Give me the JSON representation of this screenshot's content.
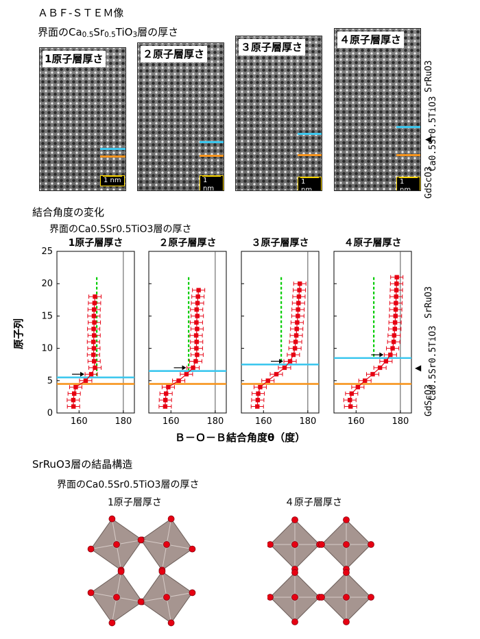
{
  "stem": {
    "title": "ＡＢＦ-ＳＴＥＭ像",
    "subtitle_pre": "界面のCa",
    "subtitle_sub1": "0.5",
    "subtitle_mid": "Sr",
    "subtitle_sub2": "0.5",
    "subtitle_ti": "TiO",
    "subtitle_sub3": "3",
    "subtitle_post": "層の厚さ",
    "panels": [
      "1原子層厚さ",
      "２原子層厚さ",
      "３原子層厚さ",
      "４原子層厚さ"
    ],
    "scale_label": "1 nm",
    "side_top": "SrRuO3",
    "side_mid": "Ca0.5Sr0.5TiO3",
    "side_bottom": "GdScO3"
  },
  "angles": {
    "title": "結合角度の変化",
    "subtitle": "界面のCa0.5Sr0.5TiO3層の厚さ",
    "xlabel": "Ｂ－Ｏ－Ｂ結合角度θ（度）",
    "ylabel": "原子列",
    "side_top": "SrRuO3",
    "side_mid": "Ca0.5Sr0.5TiO3",
    "side_bottom": "GdScO3"
  },
  "chart_data": [
    {
      "type": "scatter",
      "title": "1原子層厚さ",
      "xlabel": "Ｂ－Ｏ－Ｂ結合角度θ（度）",
      "ylabel": "原子列",
      "xlim": [
        150,
        185
      ],
      "ylim": [
        0,
        25
      ],
      "xticks": [
        160,
        180
      ],
      "yticks": [
        0,
        5,
        10,
        15,
        20,
        25
      ],
      "series": [
        {
          "x": [
            157.5,
            157.4,
            157.8,
            158.5,
            163.0,
            165.5,
            167.2,
            166.8,
            166.5,
            166.7,
            166.5,
            166.8,
            166.6,
            166.9,
            166.7,
            166.8,
            167.0,
            167.2
          ],
          "y": [
            1,
            2,
            3,
            4,
            5,
            6,
            7,
            8,
            9,
            10,
            11,
            12,
            13,
            14,
            15,
            16,
            17,
            18
          ]
        }
      ],
      "green_ref": 168,
      "ref_line": 180,
      "cyan_level": 5.5,
      "orange_level": 4.5,
      "arrow_row": 6
    },
    {
      "type": "scatter",
      "title": "２原子層厚さ",
      "xlabel": "Ｂ－Ｏ－Ｂ結合角度θ（度）",
      "ylabel": "原子列",
      "xlim": [
        150,
        185
      ],
      "ylim": [
        0,
        25
      ],
      "xticks": [
        160,
        180
      ],
      "yticks": [
        0,
        5,
        10,
        15,
        20,
        25
      ],
      "series": [
        {
          "x": [
            157.4,
            157.5,
            157.8,
            158.8,
            163.5,
            167.0,
            170.0,
            171.2,
            171.8,
            171.5,
            171.6,
            171.4,
            171.8,
            171.5,
            171.9,
            171.6,
            172.0,
            172.2,
            172.5
          ],
          "y": [
            1,
            2,
            3,
            4,
            5,
            6,
            7,
            8,
            9,
            10,
            11,
            12,
            13,
            14,
            15,
            16,
            17,
            18,
            19
          ]
        }
      ],
      "green_ref": 168,
      "ref_line": 180,
      "cyan_level": 6.5,
      "orange_level": 4.5,
      "arrow_row": 7
    },
    {
      "type": "scatter",
      "title": "３原子層厚さ",
      "xlabel": "Ｂ－Ｏ－Ｂ結合角度θ（度）",
      "ylabel": "原子列",
      "xlim": [
        150,
        185
      ],
      "ylim": [
        0,
        25
      ],
      "xticks": [
        160,
        180
      ],
      "yticks": [
        0,
        5,
        10,
        15,
        20,
        25
      ],
      "series": [
        {
          "x": [
            157.2,
            157.4,
            157.6,
            158.5,
            162.0,
            165.8,
            169.5,
            172.0,
            173.5,
            174.2,
            174.5,
            174.8,
            175.0,
            175.2,
            175.5,
            175.6,
            175.8,
            176.0,
            176.2,
            176.4
          ],
          "y": [
            1,
            2,
            3,
            4,
            5,
            6,
            7,
            8,
            9,
            10,
            11,
            12,
            13,
            14,
            15,
            16,
            17,
            18,
            19,
            20
          ]
        }
      ],
      "green_ref": 168,
      "ref_line": 180,
      "cyan_level": 7.5,
      "orange_level": 4.5,
      "arrow_row": 8
    },
    {
      "type": "scatter",
      "title": "４原子層厚さ",
      "xlabel": "Ｂ－Ｏ－Ｂ結合角度θ（度）",
      "ylabel": "原子列",
      "xlim": [
        150,
        185
      ],
      "ylim": [
        0,
        25
      ],
      "xticks": [
        160,
        180
      ],
      "yticks": [
        0,
        5,
        10,
        15,
        20,
        25
      ],
      "series": [
        {
          "x": [
            157.5,
            157.2,
            158.0,
            160.8,
            164.0,
            167.5,
            170.8,
            173.5,
            175.5,
            176.5,
            177.0,
            177.2,
            177.5,
            177.6,
            177.8,
            177.9,
            178.0,
            178.1,
            178.2,
            178.3,
            178.4
          ],
          "y": [
            1,
            2,
            3,
            4,
            5,
            6,
            7,
            8,
            9,
            10,
            11,
            12,
            13,
            14,
            15,
            16,
            17,
            18,
            19,
            20,
            21
          ]
        }
      ],
      "green_ref": 168,
      "ref_line": 180,
      "cyan_level": 8.5,
      "orange_level": 4.5,
      "arrow_row": 9
    }
  ],
  "crystal": {
    "title": "SrRuO3層の結晶構造",
    "subtitle": "界面のCa0.5Sr0.5TiO3層の厚さ",
    "left_label": "1原子層厚さ",
    "right_label": "４原子層厚さ"
  },
  "colors": {
    "cyan": "#3cc7ee",
    "orange": "#f7941d",
    "green": "#00cc00",
    "red": "#e60012",
    "octa": "#9c8a84"
  }
}
